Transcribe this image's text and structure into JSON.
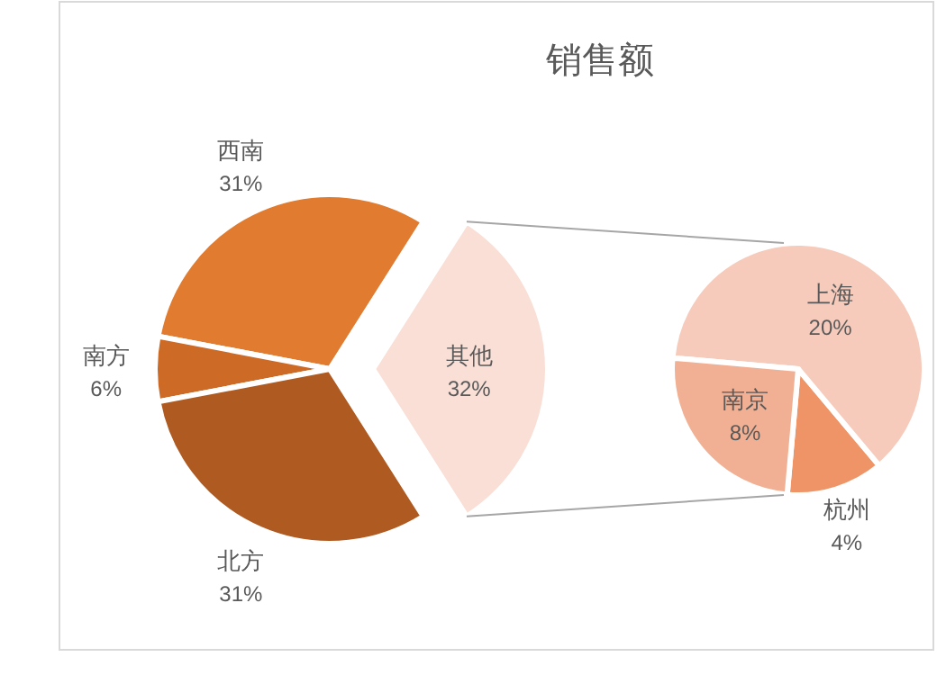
{
  "chart_data": [
    {
      "type": "pie",
      "title": "销售额",
      "categories": [
        "西南",
        "南方",
        "北方",
        "其他"
      ],
      "values": [
        31,
        6,
        31,
        32
      ],
      "colors": [
        "#e07b30",
        "#cc6a26",
        "#ae5a21",
        "#f9dfd6"
      ],
      "value_labels": [
        "31%",
        "6%",
        "31%",
        "32%"
      ]
    },
    {
      "type": "pie",
      "categories": [
        "杭州",
        "上海",
        "南京"
      ],
      "values": [
        4,
        20,
        8
      ],
      "colors": [
        "#ee9467",
        "#f6cbbb",
        "#f1b093"
      ],
      "value_labels": [
        "4%",
        "20%",
        "8%"
      ]
    }
  ]
}
